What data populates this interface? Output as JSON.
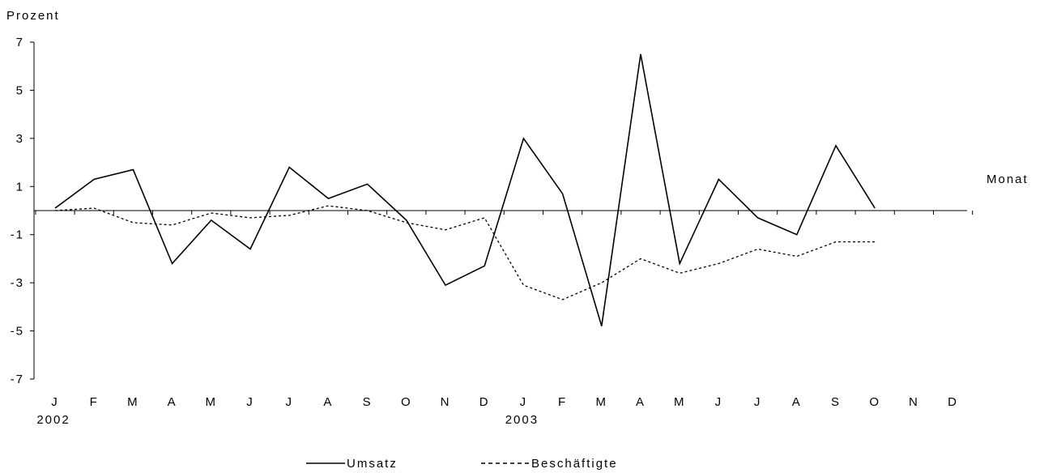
{
  "chart_data": {
    "type": "line",
    "ylabel": "Prozent",
    "xlabel": "Monat",
    "ylim": [
      -7,
      7
    ],
    "yticks": [
      7,
      5,
      3,
      1,
      -1,
      -3,
      -5,
      -7
    ],
    "ytick_labels": [
      "7",
      "5",
      "3",
      "1",
      "-1",
      "-3",
      "-5",
      "-7"
    ],
    "categories": [
      "J",
      "F",
      "M",
      "A",
      "M",
      "J",
      "J",
      "A",
      "S",
      "O",
      "N",
      "D",
      "J",
      "F",
      "M",
      "A",
      "M",
      "J",
      "J",
      "A",
      "S",
      "O",
      "N",
      "D"
    ],
    "year_labels": [
      {
        "index": 0,
        "text": "2002"
      },
      {
        "index": 12,
        "text": "2003"
      }
    ],
    "grid": false,
    "legend_position": "bottom",
    "series": [
      {
        "name": "Umsatz",
        "style": "solid",
        "color": "#000000",
        "values": [
          0.1,
          1.3,
          1.7,
          -2.2,
          -0.4,
          -1.6,
          1.8,
          0.5,
          1.1,
          -0.4,
          -3.1,
          -2.3,
          3.0,
          0.7,
          -4.8,
          6.5,
          -2.2,
          1.3,
          -0.3,
          -1.0,
          2.7,
          0.1,
          null,
          null
        ]
      },
      {
        "name": "Beschäftigte",
        "style": "dashed",
        "color": "#000000",
        "values": [
          0.0,
          0.1,
          -0.5,
          -0.6,
          -0.1,
          -0.3,
          -0.2,
          0.2,
          0.0,
          -0.5,
          -0.8,
          -0.3,
          -3.1,
          -3.7,
          -3.0,
          -2.0,
          -2.6,
          -2.2,
          -1.6,
          -1.9,
          -1.3,
          -1.3,
          null,
          null
        ]
      }
    ]
  }
}
